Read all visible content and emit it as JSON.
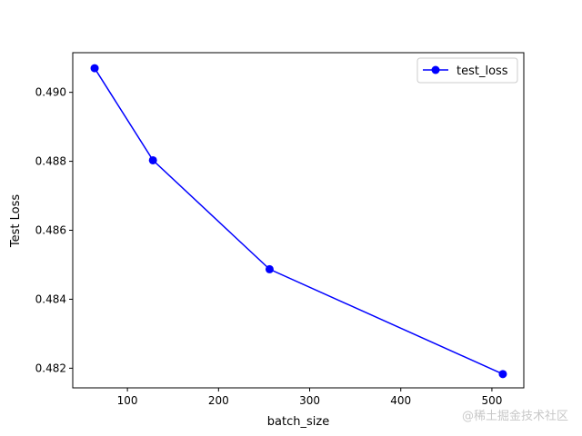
{
  "chart_data": {
    "type": "line",
    "xlabel": "batch_size",
    "ylabel": "Test Loss",
    "xlim": [
      40,
      535
    ],
    "ylim": [
      0.48143,
      0.49115
    ],
    "xticks": [
      100,
      200,
      300,
      400,
      500
    ],
    "yticks": [
      0.482,
      0.484,
      0.486,
      0.488,
      0.49
    ],
    "ytick_decimals": 3,
    "grid": false,
    "legend_position": "top-right",
    "series": [
      {
        "name": "test_loss",
        "color": "#0000ff",
        "marker": "circle",
        "x": [
          64,
          128,
          256,
          512
        ],
        "y": [
          0.4907,
          0.48803,
          0.48487,
          0.48183
        ]
      }
    ]
  },
  "watermark": "@稀土掘金技术社区"
}
